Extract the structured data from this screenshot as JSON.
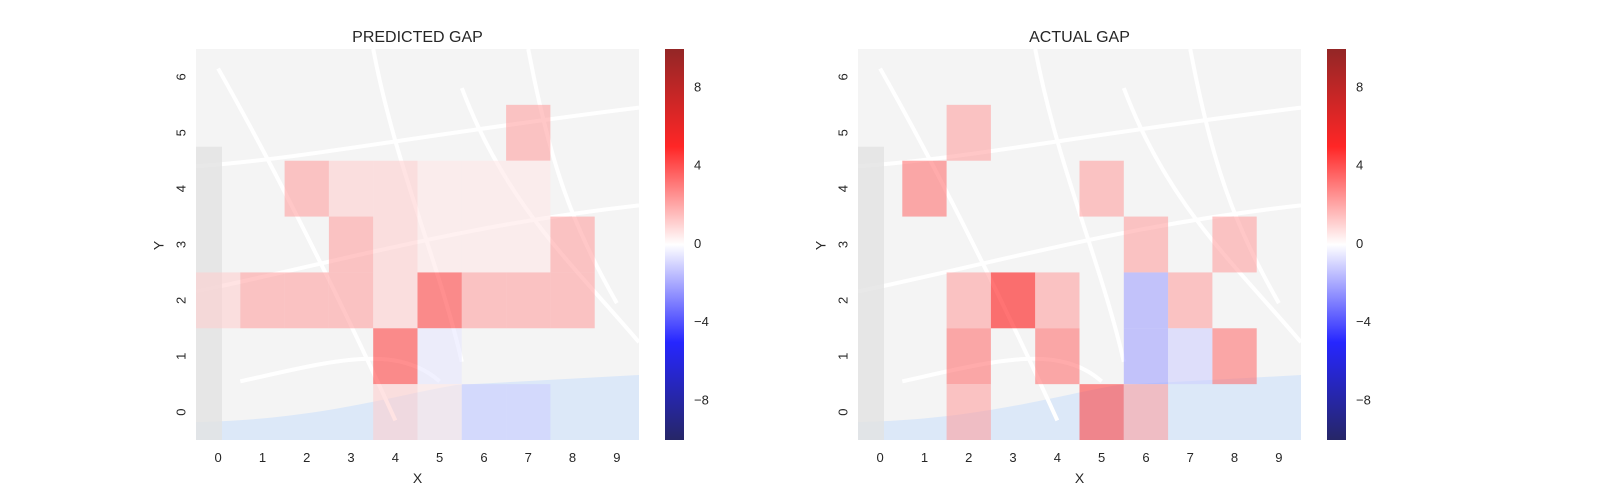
{
  "chart_data": [
    {
      "type": "heatmap",
      "title": "PREDICTED GAP",
      "xlabel": "X",
      "ylabel": "Y",
      "x_ticks": [
        "0",
        "1",
        "2",
        "3",
        "4",
        "5",
        "6",
        "7",
        "8",
        "9"
      ],
      "y_ticks": [
        "0",
        "1",
        "2",
        "3",
        "4",
        "5",
        "6"
      ],
      "background": "street map",
      "colorbar": {
        "cmap": "seismic",
        "vmin": -10,
        "vmax": 10,
        "ticks": [
          "8",
          "4",
          "0",
          "−4",
          "−8"
        ],
        "tick_values": [
          8,
          4,
          0,
          -4,
          -8
        ]
      },
      "cells": [
        {
          "x": 7,
          "y": 5,
          "v": 2
        },
        {
          "x": 2,
          "y": 4,
          "v": 2
        },
        {
          "x": 3,
          "y": 4,
          "v": 1
        },
        {
          "x": 4,
          "y": 4,
          "v": 1
        },
        {
          "x": 5,
          "y": 4,
          "v": 0.5
        },
        {
          "x": 6,
          "y": 4,
          "v": 0.5
        },
        {
          "x": 7,
          "y": 4,
          "v": 0.5
        },
        {
          "x": 3,
          "y": 3,
          "v": 2
        },
        {
          "x": 4,
          "y": 3,
          "v": 1
        },
        {
          "x": 5,
          "y": 3,
          "v": 0.5
        },
        {
          "x": 6,
          "y": 3,
          "v": 0.5
        },
        {
          "x": 7,
          "y": 3,
          "v": 0.5
        },
        {
          "x": 8,
          "y": 3,
          "v": 2
        },
        {
          "x": 0,
          "y": 2,
          "v": 1
        },
        {
          "x": 1,
          "y": 2,
          "v": 2
        },
        {
          "x": 2,
          "y": 2,
          "v": 2
        },
        {
          "x": 3,
          "y": 2,
          "v": 2
        },
        {
          "x": 4,
          "y": 2,
          "v": 1
        },
        {
          "x": 5,
          "y": 2,
          "v": 4
        },
        {
          "x": 6,
          "y": 2,
          "v": 2
        },
        {
          "x": 7,
          "y": 2,
          "v": 2
        },
        {
          "x": 8,
          "y": 2,
          "v": 2
        },
        {
          "x": 4,
          "y": 1,
          "v": 4
        },
        {
          "x": 5,
          "y": 1,
          "v": -0.5
        },
        {
          "x": 4,
          "y": 0,
          "v": 1
        },
        {
          "x": 5,
          "y": 0,
          "v": 0.5
        },
        {
          "x": 6,
          "y": 0,
          "v": -1
        },
        {
          "x": 7,
          "y": 0,
          "v": -1
        }
      ]
    },
    {
      "type": "heatmap",
      "title": "ACTUAL GAP",
      "xlabel": "X",
      "ylabel": "Y",
      "x_ticks": [
        "0",
        "1",
        "2",
        "3",
        "4",
        "5",
        "6",
        "7",
        "8",
        "9"
      ],
      "y_ticks": [
        "0",
        "1",
        "2",
        "3",
        "4",
        "5",
        "6"
      ],
      "background": "street map",
      "colorbar": {
        "cmap": "seismic",
        "vmin": -10,
        "vmax": 10,
        "ticks": [
          "8",
          "4",
          "0",
          "−4",
          "−8"
        ],
        "tick_values": [
          8,
          4,
          0,
          -4,
          -8
        ]
      },
      "cells": [
        {
          "x": 2,
          "y": 5,
          "v": 2
        },
        {
          "x": 1,
          "y": 4,
          "v": 3
        },
        {
          "x": 5,
          "y": 4,
          "v": 2
        },
        {
          "x": 6,
          "y": 3,
          "v": 2
        },
        {
          "x": 8,
          "y": 3,
          "v": 2
        },
        {
          "x": 2,
          "y": 2,
          "v": 2
        },
        {
          "x": 3,
          "y": 2,
          "v": 5
        },
        {
          "x": 4,
          "y": 2,
          "v": 2
        },
        {
          "x": 6,
          "y": 2,
          "v": -2
        },
        {
          "x": 7,
          "y": 2,
          "v": 2
        },
        {
          "x": 2,
          "y": 1,
          "v": 3
        },
        {
          "x": 4,
          "y": 1,
          "v": 3
        },
        {
          "x": 6,
          "y": 1,
          "v": -2
        },
        {
          "x": 7,
          "y": 1,
          "v": -1
        },
        {
          "x": 8,
          "y": 1,
          "v": 3
        },
        {
          "x": 2,
          "y": 0,
          "v": 2
        },
        {
          "x": 5,
          "y": 0,
          "v": 4
        },
        {
          "x": 6,
          "y": 0,
          "v": 2
        }
      ]
    }
  ]
}
